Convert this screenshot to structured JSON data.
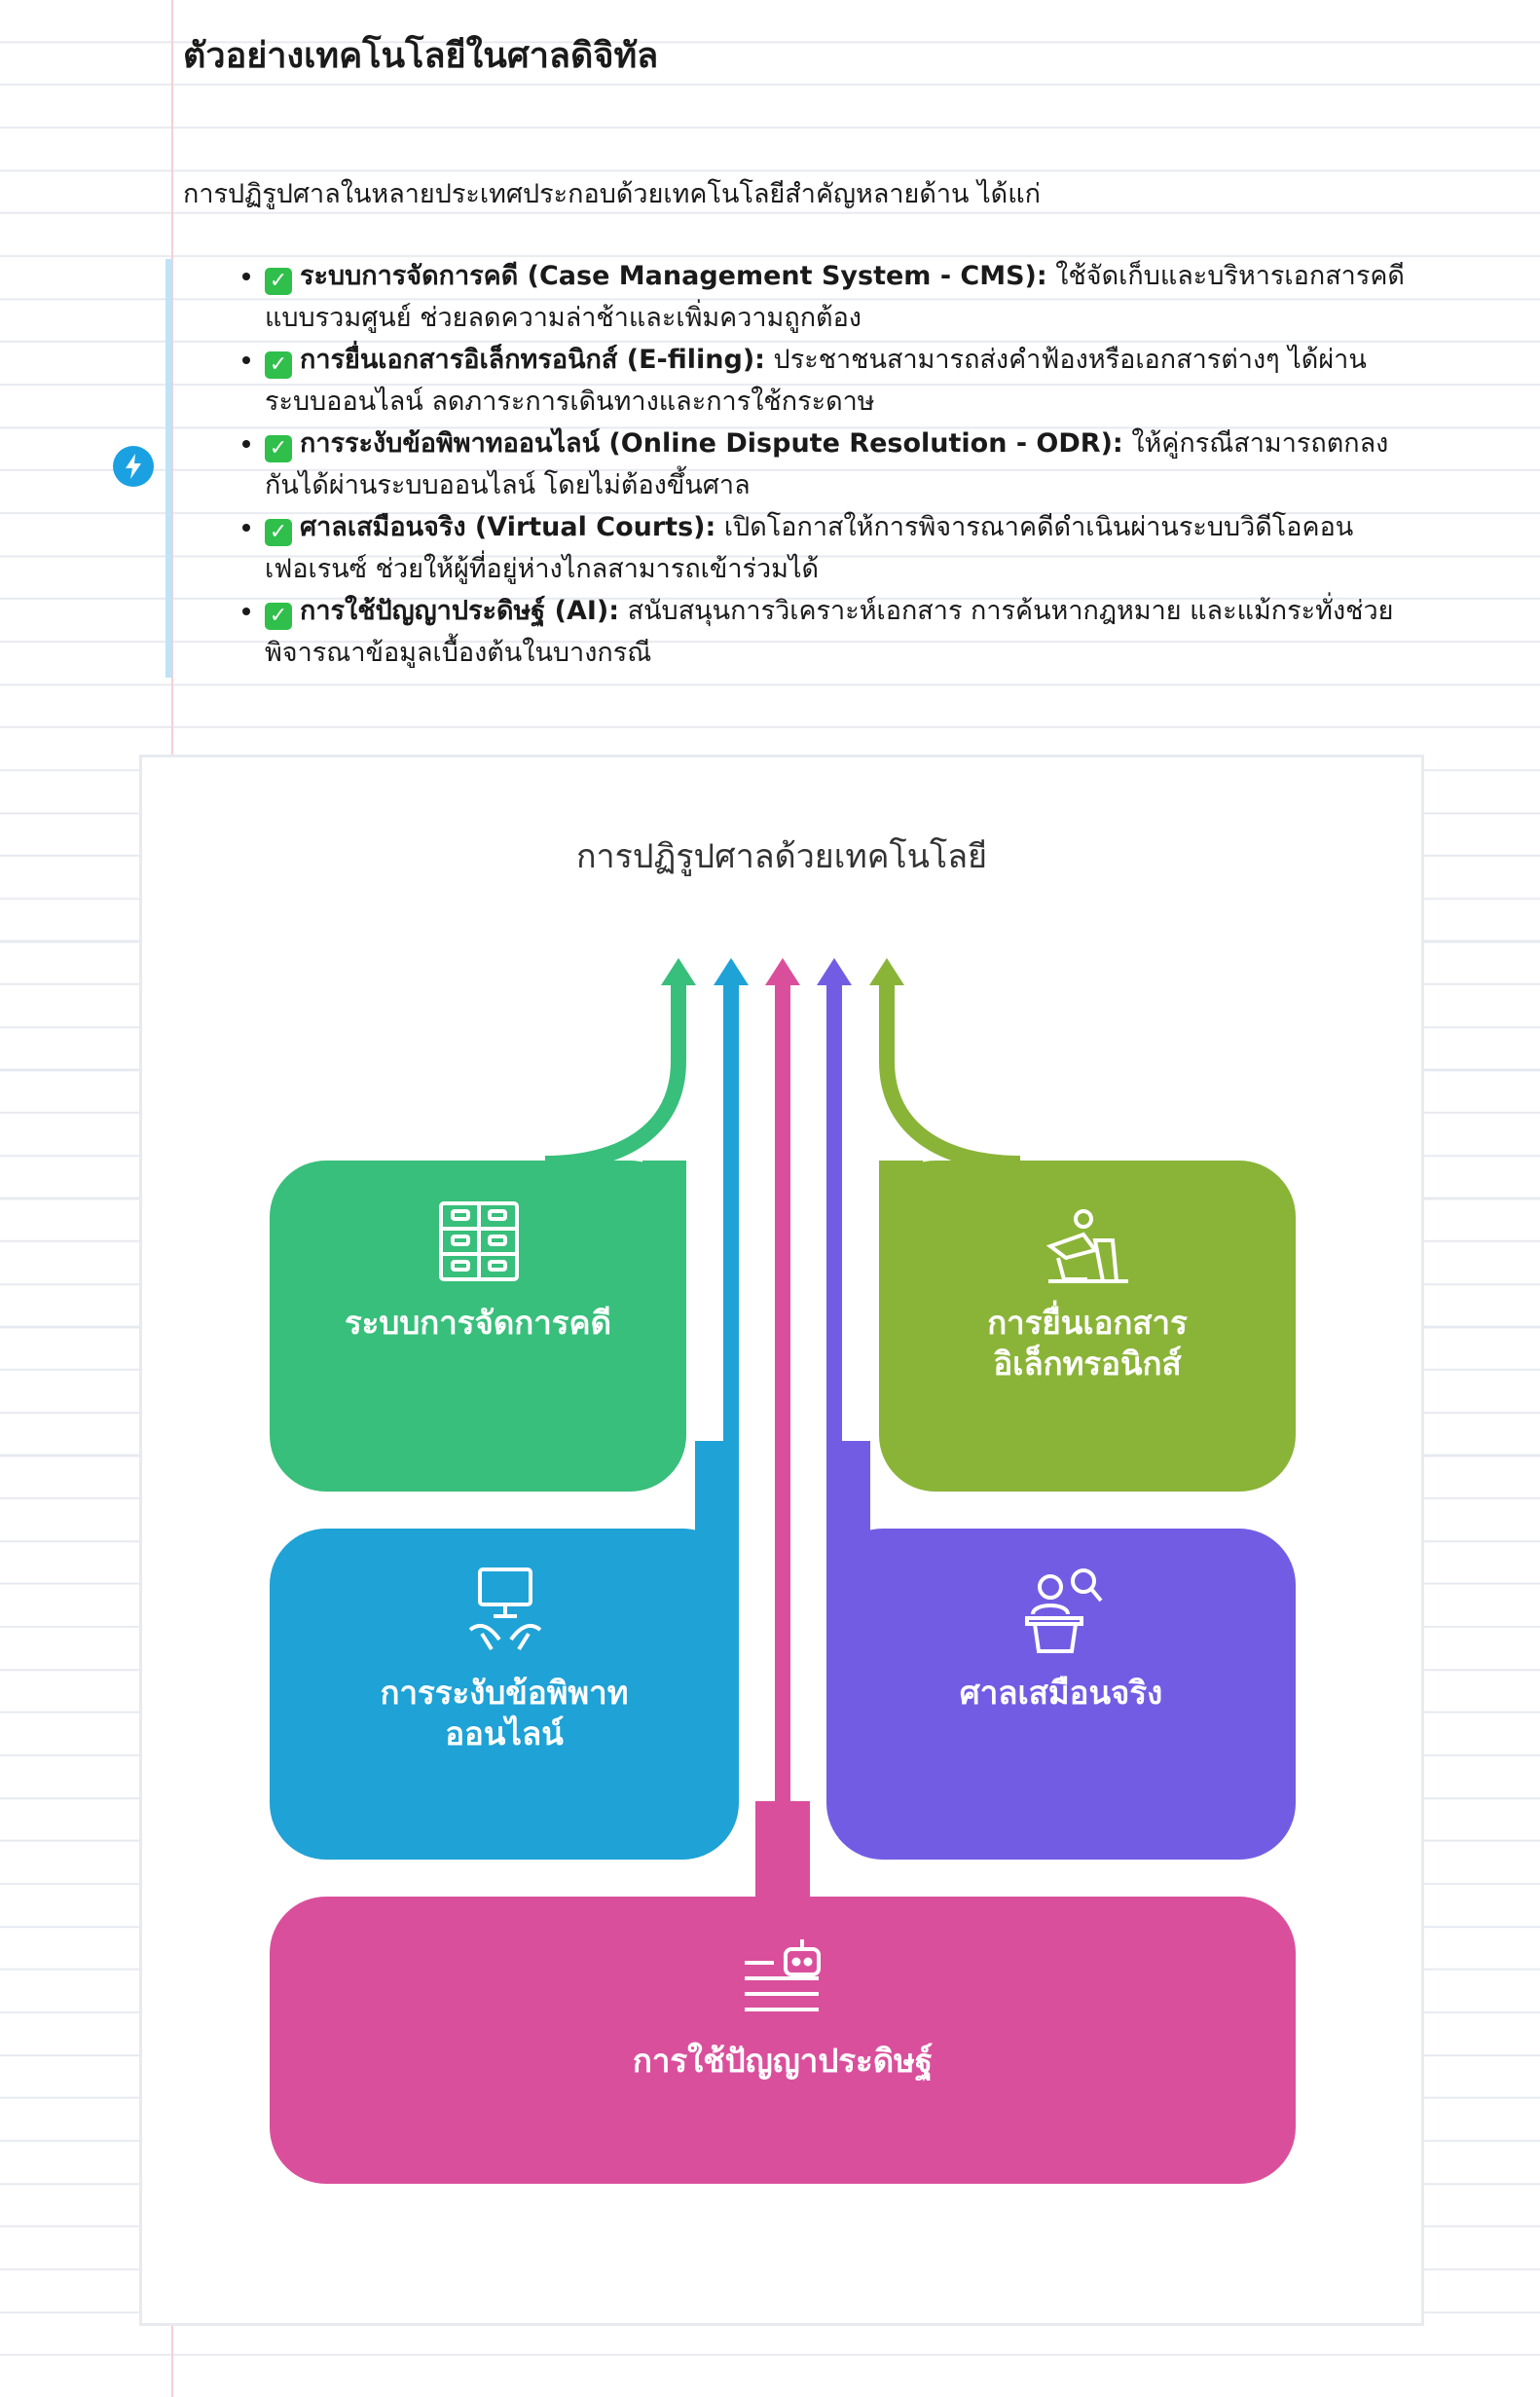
{
  "document": {
    "title": "ตัวอย่างเทคโนโลยีในศาลดิจิทัล",
    "intro": "การปฏิรูปศาลในหลายประเทศประกอบด้วยเทคโนโลยีสำคัญหลายด้าน ได้แก่",
    "items": [
      {
        "term": "ระบบการจัดการคดี (Case Management System - CMS):",
        "desc": " ใช้จัดเก็บและบริหารเอกสารคดีแบบรวมศูนย์ ช่วยลดความล่าช้าและเพิ่มความถูกต้อง"
      },
      {
        "term": "การยื่นเอกสารอิเล็กทรอนิกส์ (E-filing):",
        "desc": " ประชาชนสามารถส่งคำฟ้องหรือเอกสารต่างๆ ได้ผ่านระบบออนไลน์ ลดภาระการเดินทางและการใช้กระดาษ"
      },
      {
        "term": "การระงับข้อพิพาทออนไลน์ (Online Dispute Resolution - ODR):",
        "desc": " ให้คู่กรณีสามารถตกลงกันได้ผ่านระบบออนไลน์ โดยไม่ต้องขึ้นศาล"
      },
      {
        "term": "ศาลเสมือนจริง (Virtual Courts):",
        "desc": " เปิดโอกาสให้การพิจารณาคดีดำเนินผ่านระบบวิดีโอคอนเฟอเรนซ์ ช่วยให้ผู้ที่อยู่ห่างไกลสามารถเข้าร่วมได้"
      },
      {
        "term": "การใช้ปัญญาประดิษฐ์ (AI):",
        "desc": " สนับสนุนการวิเคราะห์เอกสาร การค้นหากฎหมาย และแม้กระทั่งช่วยพิจารณาข้อมูลเบื้องต้นในบางกรณี"
      }
    ]
  },
  "diagram": {
    "title": "การปฏิรูปศาลด้วยเทคโนโลยี",
    "boxes": {
      "cms": {
        "label": "ระบบการจัดการคดี",
        "color": "#38bf7b",
        "icon": "file-cabinet-icon"
      },
      "efiling": {
        "line1": "การยื่นเอกสาร",
        "line2": "อิเล็กทรอนิกส์",
        "color": "#8ab438",
        "icon": "person-desk-icon"
      },
      "odr": {
        "line1": "การระงับข้อพิพาท",
        "line2": "ออนไลน์",
        "color": "#1fa2d6",
        "icon": "computer-handshake-icon"
      },
      "virtual": {
        "label": "ศาลเสมือนจริง",
        "color": "#735ce4",
        "icon": "virtual-meeting-icon"
      },
      "ai": {
        "label": "การใช้ปัญญาประดิษฐ์",
        "color": "#da4f9c",
        "icon": "robot-document-icon"
      }
    }
  }
}
